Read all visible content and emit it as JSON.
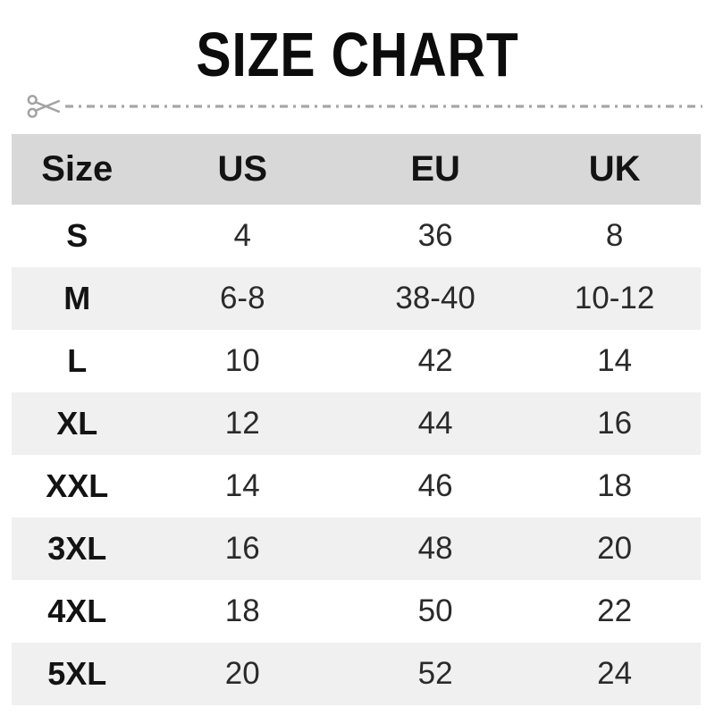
{
  "title": "SIZE CHART",
  "icons": {
    "scissors": "scissors-icon"
  },
  "colors": {
    "header_bg": "#d8d8d8",
    "alt_row_bg": "#f0f0f0",
    "row_bg": "#ffffff",
    "text": "#131313",
    "value_text": "#2a2a2a",
    "cut_line": "#a6a6a6",
    "title_text": "#0c0c0c"
  },
  "table": {
    "columns": [
      "Size",
      "US",
      "EU",
      "UK"
    ],
    "rows": [
      [
        "S",
        "4",
        "36",
        "8"
      ],
      [
        "M",
        "6-8",
        "38-40",
        "10-12"
      ],
      [
        "L",
        "10",
        "42",
        "14"
      ],
      [
        "XL",
        "12",
        "44",
        "16"
      ],
      [
        "XXL",
        "14",
        "46",
        "18"
      ],
      [
        "3XL",
        "16",
        "48",
        "20"
      ],
      [
        "4XL",
        "18",
        "50",
        "22"
      ],
      [
        "5XL",
        "20",
        "52",
        "24"
      ]
    ]
  }
}
